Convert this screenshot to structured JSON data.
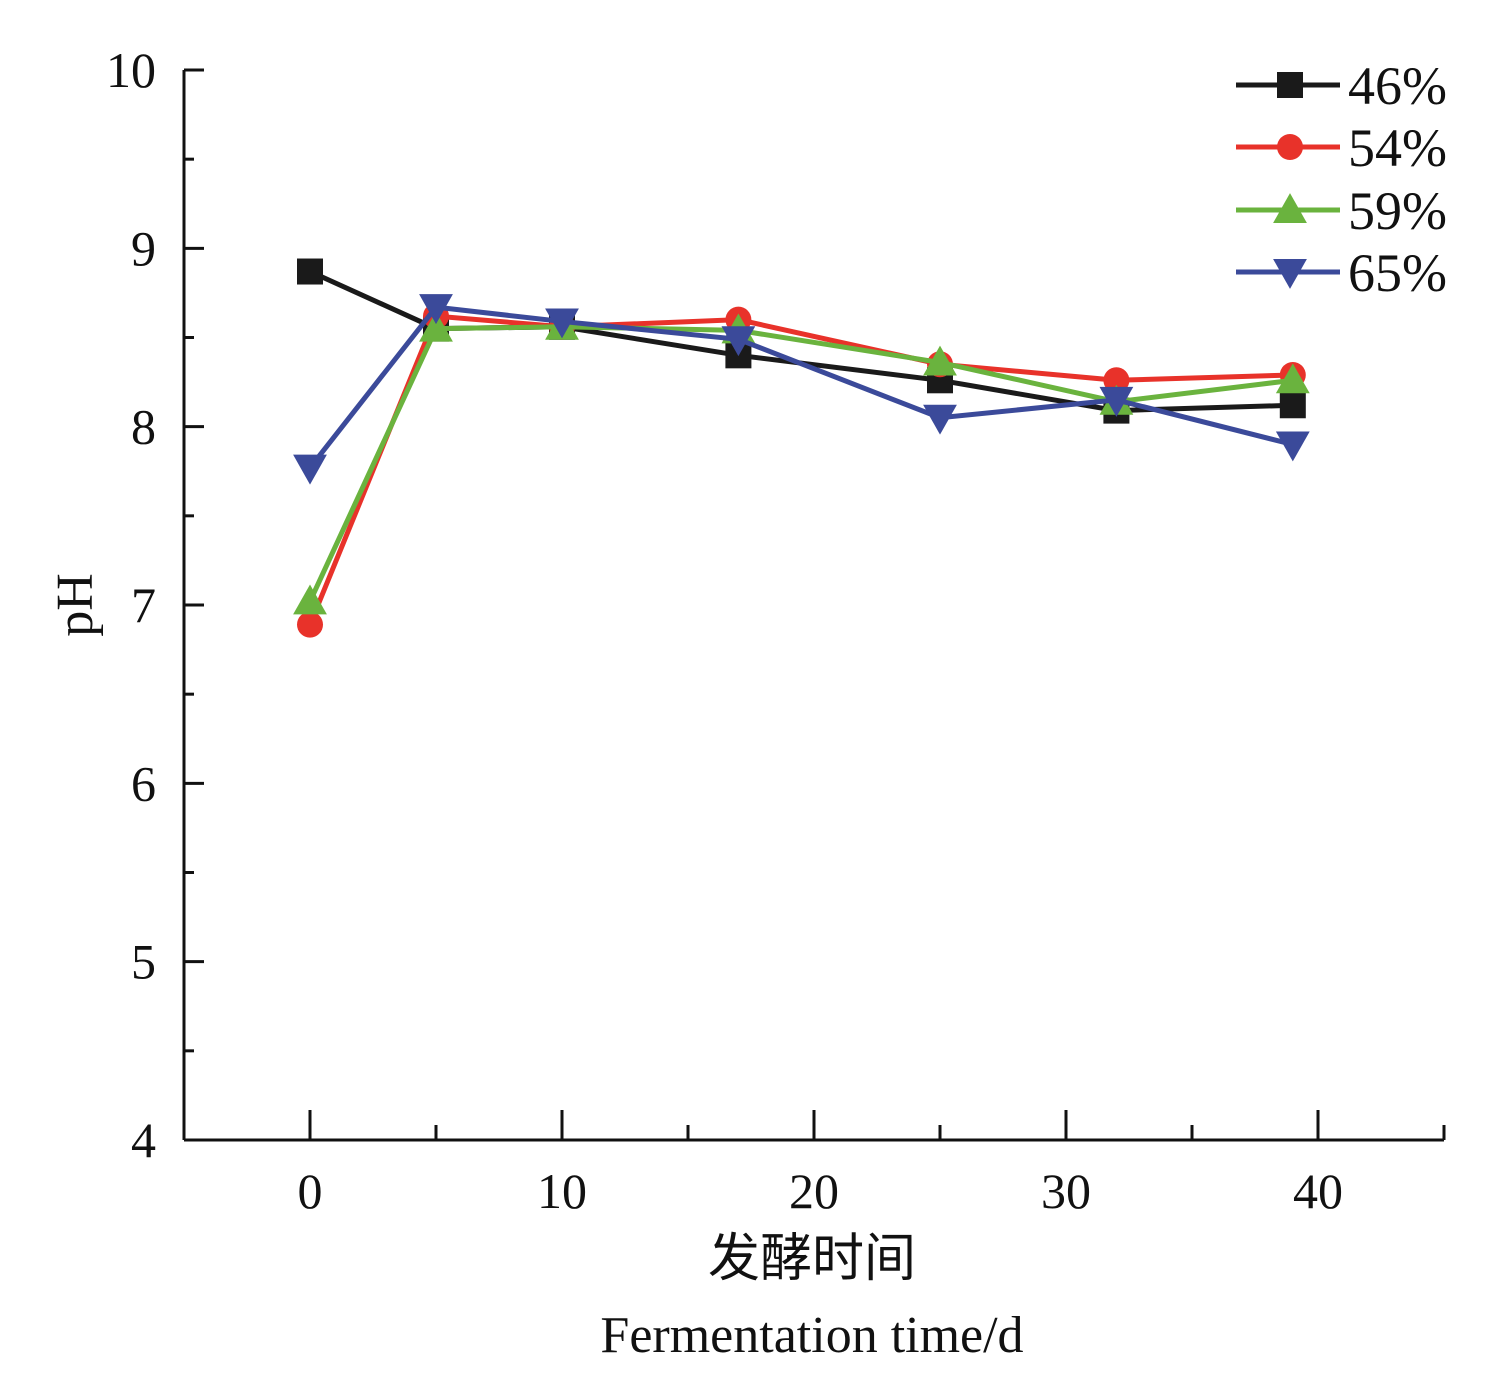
{
  "chart_data": {
    "type": "line",
    "title": "",
    "xlabel_cn": "发酵时间",
    "xlabel": "Fermentation time/d",
    "ylabel": "pH",
    "xlim": [
      -5,
      45
    ],
    "ylim": [
      4,
      10
    ],
    "xticks": [
      0,
      10,
      20,
      30,
      40
    ],
    "xminor": [
      5,
      15,
      25,
      35
    ],
    "yticks": [
      4,
      5,
      6,
      7,
      8,
      9,
      10
    ],
    "grid": false,
    "legend_position": "top-right",
    "x": [
      0,
      5,
      10,
      17,
      25,
      32,
      39
    ],
    "series": [
      {
        "name": "46%",
        "color": "#1a1a1a",
        "marker": "square",
        "values": [
          8.87,
          8.55,
          8.56,
          8.4,
          8.26,
          8.09,
          8.12
        ]
      },
      {
        "name": "54%",
        "color": "#e8322a",
        "marker": "circle",
        "values": [
          6.89,
          8.62,
          8.56,
          8.6,
          8.35,
          8.26,
          8.29
        ]
      },
      {
        "name": "59%",
        "color": "#6ab33e",
        "marker": "triangle-up",
        "values": [
          7.02,
          8.55,
          8.56,
          8.54,
          8.36,
          8.14,
          8.26
        ]
      },
      {
        "name": "65%",
        "color": "#3b4a9a",
        "marker": "triangle-down",
        "values": [
          7.77,
          8.67,
          8.59,
          8.49,
          8.05,
          8.15,
          7.9
        ]
      }
    ]
  }
}
